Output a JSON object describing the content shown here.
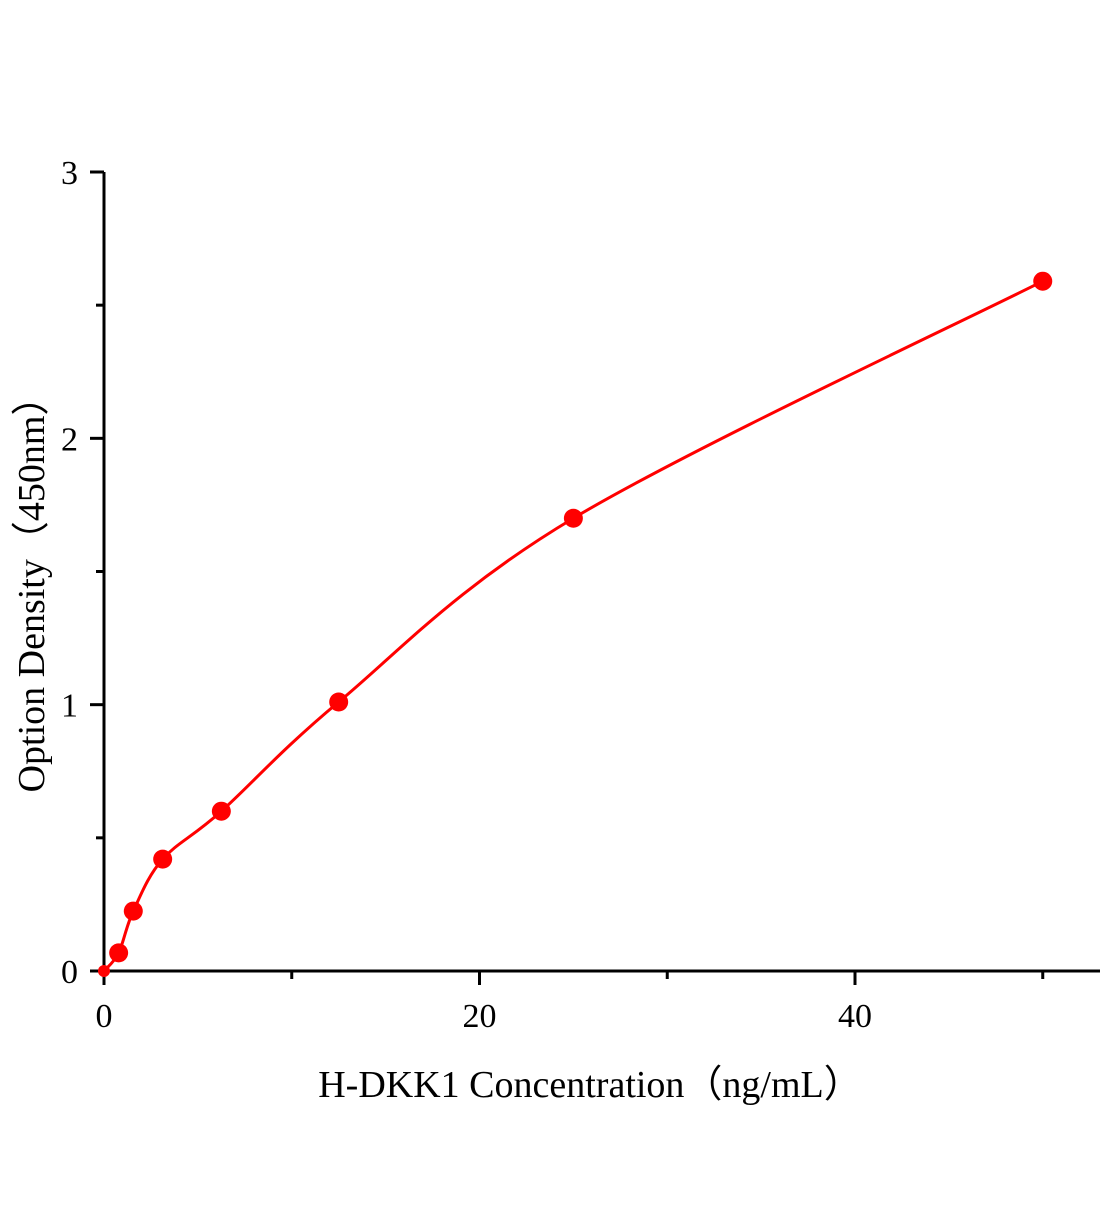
{
  "chart_data": {
    "type": "scatter",
    "title": "",
    "xlabel": "H-DKK1 Concentration（ng/mL）",
    "ylabel": "Option Density（450nm）",
    "xlim": [
      0,
      53.1
    ],
    "ylim": [
      0,
      3
    ],
    "x_ticks": [
      0,
      20,
      40
    ],
    "x_minor_ticks": [
      10,
      30,
      50
    ],
    "y_ticks": [
      0,
      1,
      2,
      3
    ],
    "y_minor_ticks": [
      0.5,
      1.5,
      2.5
    ],
    "grid": false,
    "color": "#ff0000",
    "series": [
      {
        "x": [
          0,
          0.78,
          1.56,
          3.125,
          6.25,
          12.5,
          25,
          50
        ],
        "y": [
          0.0,
          0.068,
          0.225,
          0.42,
          0.6,
          1.01,
          1.7,
          2.59
        ],
        "fit_line": true
      }
    ]
  }
}
